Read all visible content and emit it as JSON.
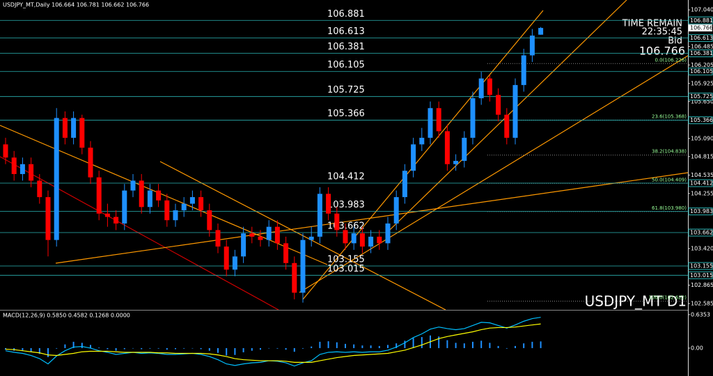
{
  "chart_data": [
    {
      "type": "candlestick",
      "title": "USDJPY_MT,Daily 106.664 106.781 106.662 106.766",
      "open": [
        105.0,
        104.8,
        104.55,
        104.7,
        104.45,
        104.2,
        103.55,
        105.4,
        105.1,
        105.4,
        104.95,
        104.5,
        103.95,
        103.9,
        103.8,
        104.3,
        104.45,
        104.05,
        104.3,
        104.15,
        103.85,
        104.0,
        104.1,
        104.2,
        104.0,
        103.7,
        103.45,
        103.1,
        103.3,
        103.65,
        103.6,
        103.55,
        103.75,
        103.5,
        103.2,
        102.75,
        103.55,
        103.6,
        104.25,
        103.95,
        103.7,
        103.5,
        103.65,
        103.45,
        103.6,
        103.5,
        103.8,
        104.2,
        104.6,
        105.0,
        105.1,
        105.55,
        105.2,
        104.7,
        104.75,
        105.1,
        105.7,
        106.0,
        105.75,
        105.45,
        105.1,
        105.9,
        106.35,
        106.664
      ],
      "high": [
        105.1,
        104.9,
        104.8,
        104.8,
        104.55,
        104.3,
        105.55,
        105.5,
        105.5,
        105.45,
        105.05,
        104.6,
        104.1,
        104.0,
        104.4,
        104.55,
        104.55,
        104.4,
        104.4,
        104.25,
        104.1,
        104.2,
        104.3,
        104.3,
        104.1,
        103.8,
        103.55,
        103.4,
        103.75,
        103.75,
        103.7,
        103.85,
        103.85,
        103.6,
        103.3,
        103.65,
        103.75,
        104.35,
        104.35,
        104.05,
        103.8,
        103.75,
        103.75,
        103.7,
        103.7,
        103.9,
        104.3,
        104.7,
        105.1,
        105.25,
        105.65,
        105.65,
        105.3,
        104.85,
        105.2,
        105.8,
        106.1,
        106.05,
        105.85,
        105.55,
        106.0,
        106.45,
        106.75,
        106.781
      ],
      "low": [
        104.7,
        104.45,
        104.45,
        104.35,
        104.1,
        103.3,
        103.45,
        105.0,
        105.0,
        104.85,
        104.4,
        103.85,
        103.75,
        103.7,
        103.7,
        104.2,
        103.95,
        103.95,
        104.05,
        103.75,
        103.75,
        103.9,
        104.0,
        103.9,
        103.6,
        103.35,
        103.0,
        103.0,
        103.2,
        103.5,
        103.45,
        103.45,
        103.4,
        103.1,
        102.65,
        102.6,
        103.45,
        103.5,
        103.85,
        103.6,
        103.4,
        103.4,
        103.35,
        103.35,
        103.4,
        103.4,
        103.7,
        104.1,
        104.5,
        104.9,
        105.0,
        105.1,
        104.6,
        104.6,
        104.65,
        105.0,
        105.6,
        105.65,
        105.35,
        105.0,
        105.0,
        105.8,
        106.25,
        106.662
      ],
      "close": [
        104.8,
        104.55,
        104.7,
        104.45,
        104.2,
        103.55,
        105.4,
        105.1,
        105.4,
        104.95,
        104.5,
        103.95,
        103.9,
        103.8,
        104.3,
        104.45,
        104.05,
        104.3,
        104.15,
        103.85,
        104.0,
        104.1,
        104.2,
        104.0,
        103.7,
        103.45,
        103.1,
        103.3,
        103.65,
        103.6,
        103.55,
        103.75,
        103.5,
        103.2,
        102.75,
        103.55,
        103.6,
        104.25,
        103.95,
        103.7,
        103.5,
        103.65,
        103.45,
        103.6,
        103.5,
        103.8,
        104.2,
        104.6,
        105.0,
        105.1,
        105.55,
        105.2,
        104.7,
        104.75,
        105.1,
        105.7,
        106.0,
        105.75,
        105.45,
        105.1,
        105.9,
        106.35,
        106.65,
        106.766
      ],
      "up_color": "#1e90ff",
      "down_color": "#ff0000",
      "ylim": [
        102.49,
        107.19
      ],
      "yticks": [
        {
          "value": 107.04,
          "label": "107.040"
        },
        {
          "value": 106.485,
          "label": "106.485"
        },
        {
          "value": 106.205,
          "label": "106.205"
        },
        {
          "value": 105.925,
          "label": "105.925"
        },
        {
          "value": 105.65,
          "label": "105.650"
        },
        {
          "value": 105.09,
          "label": "105.090"
        },
        {
          "value": 104.815,
          "label": "104.815"
        },
        {
          "value": 104.535,
          "label": "104.535"
        },
        {
          "value": 104.255,
          "label": "104.255"
        },
        {
          "value": 103.42,
          "label": "103.420"
        },
        {
          "value": 102.865,
          "label": "102.865"
        },
        {
          "value": 102.585,
          "label": "102.585"
        }
      ],
      "levels": [
        106.881,
        106.613,
        106.381,
        106.105,
        105.725,
        105.366,
        104.412,
        103.983,
        103.662,
        103.155,
        103.015
      ],
      "level_color": "#2bb5b5",
      "fib_levels": [
        {
          "value": 106.226,
          "label": "0.0(106.226)"
        },
        {
          "value": 105.368,
          "label": "23.6(105.368)"
        },
        {
          "value": 104.838,
          "label": "38.2(104.838)"
        },
        {
          "value": 104.409,
          "label": "50.0(104.409)"
        },
        {
          "value": 103.98,
          "label": "61.8(103.980)"
        },
        {
          "value": 102.622,
          "label": "100.0(102.622)"
        }
      ],
      "annotations": {
        "time_remain_label": "TIME REMAIN",
        "time_remain": "22:35:45",
        "bid_label": "Bid",
        "bid": 106.766,
        "symbol": "USDJPY_MT D1"
      }
    },
    {
      "type": "macd",
      "title": "MACD(12,26,9) 0.5850 0.4582 0.1268 0.0000",
      "histogram": [
        -0.03,
        -0.05,
        -0.05,
        -0.07,
        -0.11,
        -0.17,
        -0.01,
        0.07,
        0.12,
        0.1,
        0.06,
        0.01,
        -0.02,
        -0.05,
        -0.02,
        0.0,
        -0.02,
        -0.01,
        -0.01,
        -0.03,
        -0.02,
        -0.01,
        0.0,
        -0.02,
        -0.05,
        -0.09,
        -0.14,
        -0.13,
        -0.08,
        -0.05,
        -0.03,
        0.0,
        -0.01,
        -0.03,
        -0.07,
        -0.01,
        0.03,
        0.12,
        0.13,
        0.11,
        0.08,
        0.07,
        0.05,
        0.05,
        0.04,
        0.06,
        0.09,
        0.14,
        0.19,
        0.21,
        0.24,
        0.22,
        0.15,
        0.1,
        0.09,
        0.12,
        0.14,
        0.1,
        0.04,
        -0.01,
        0.04,
        0.09,
        0.12,
        0.1268
      ],
      "macd": [
        -0.05,
        -0.08,
        -0.1,
        -0.14,
        -0.2,
        -0.3,
        -0.15,
        -0.05,
        0.02,
        0.03,
        0.0,
        -0.05,
        -0.08,
        -0.12,
        -0.1,
        -0.08,
        -0.1,
        -0.09,
        -0.1,
        -0.12,
        -0.12,
        -0.11,
        -0.1,
        -0.12,
        -0.16,
        -0.22,
        -0.3,
        -0.33,
        -0.3,
        -0.28,
        -0.27,
        -0.24,
        -0.25,
        -0.28,
        -0.34,
        -0.28,
        -0.24,
        -0.12,
        -0.08,
        -0.07,
        -0.08,
        -0.07,
        -0.08,
        -0.07,
        -0.07,
        -0.04,
        0.02,
        0.1,
        0.2,
        0.27,
        0.36,
        0.4,
        0.37,
        0.35,
        0.37,
        0.43,
        0.49,
        0.48,
        0.43,
        0.38,
        0.44,
        0.51,
        0.56,
        0.585
      ],
      "signal": [
        -0.02,
        -0.03,
        -0.05,
        -0.07,
        -0.09,
        -0.13,
        -0.14,
        -0.12,
        -0.1,
        -0.07,
        -0.06,
        -0.06,
        -0.06,
        -0.07,
        -0.08,
        -0.08,
        -0.08,
        -0.08,
        -0.09,
        -0.09,
        -0.1,
        -0.1,
        -0.1,
        -0.1,
        -0.11,
        -0.13,
        -0.16,
        -0.2,
        -0.22,
        -0.23,
        -0.24,
        -0.24,
        -0.24,
        -0.25,
        -0.27,
        -0.27,
        -0.27,
        -0.24,
        -0.21,
        -0.18,
        -0.16,
        -0.14,
        -0.13,
        -0.12,
        -0.11,
        -0.1,
        -0.07,
        -0.04,
        0.01,
        0.06,
        0.12,
        0.18,
        0.22,
        0.25,
        0.28,
        0.31,
        0.35,
        0.38,
        0.39,
        0.39,
        0.4,
        0.42,
        0.44,
        0.4582
      ],
      "hist_color": "#1e90ff",
      "macd_color": "#00bfff",
      "signal_color": "#ffff00",
      "ylim": [
        -0.53,
        0.7
      ],
      "yticks": [
        0.6353,
        {
          "value": 0,
          "label": "0.00"
        }
      ]
    }
  ]
}
